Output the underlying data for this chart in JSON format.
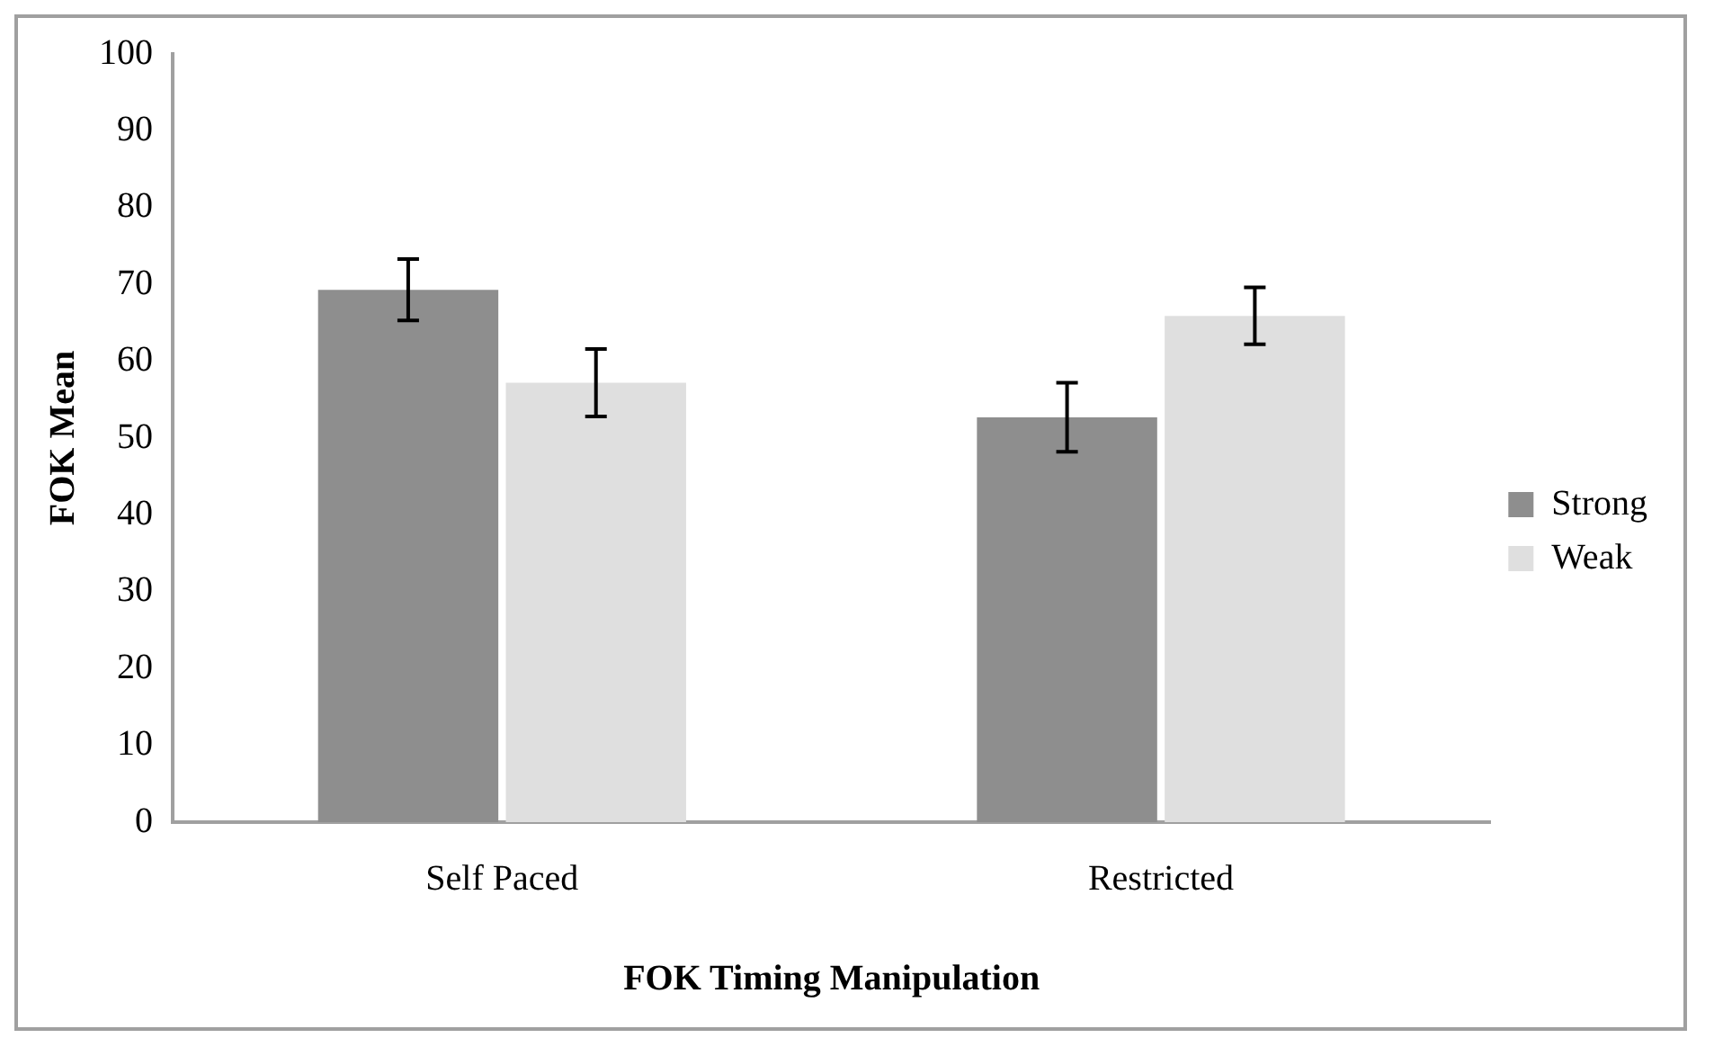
{
  "chart_data": {
    "type": "bar",
    "xlabel": "FOK Timing Manipulation",
    "ylabel": "FOK Mean",
    "categories": [
      "Self Paced",
      "Restricted"
    ],
    "series": [
      {
        "name": "Strong",
        "color": "#8e8e8e",
        "values": [
          69.3,
          52.7
        ],
        "errors": [
          4,
          4.5
        ]
      },
      {
        "name": "Weak",
        "color": "#dfdfdf",
        "values": [
          57.2,
          65.9
        ],
        "errors": [
          4.4,
          3.7
        ]
      }
    ],
    "ylim": [
      0,
      100
    ],
    "yticks": [
      0,
      10,
      20,
      30,
      40,
      50,
      60,
      70,
      80,
      90,
      100
    ],
    "grid": false,
    "legend": "right"
  }
}
